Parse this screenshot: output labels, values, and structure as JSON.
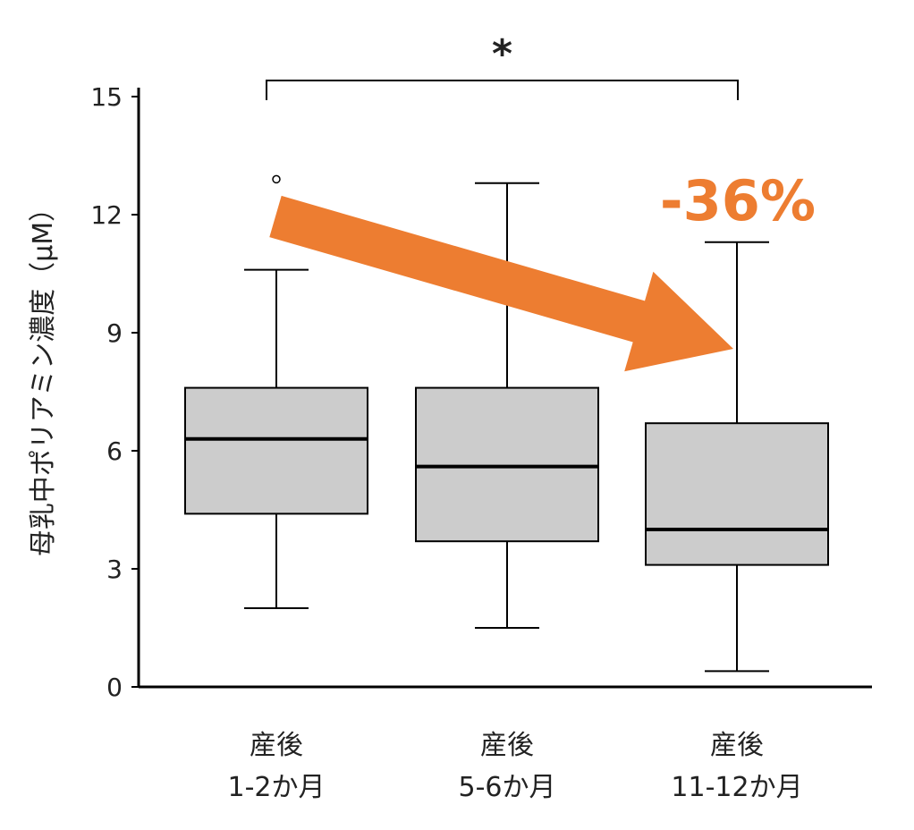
{
  "chart_data": {
    "type": "box",
    "ylabel": "母乳中ポリアミン濃度（μM）",
    "ylim": [
      0,
      15
    ],
    "yticks": [
      0,
      3,
      6,
      9,
      12,
      15
    ],
    "categories": [
      [
        "産後",
        "1-2か月"
      ],
      [
        "産後",
        "5-6か月"
      ],
      [
        "産後",
        "11-12か月"
      ]
    ],
    "boxes": [
      {
        "whisker_low": 2.0,
        "q1": 4.4,
        "median": 6.3,
        "q3": 7.6,
        "whisker_high": 10.6,
        "outliers": [
          12.9
        ]
      },
      {
        "whisker_low": 1.5,
        "q1": 3.7,
        "median": 5.6,
        "q3": 7.6,
        "whisker_high": 12.8,
        "outliers": []
      },
      {
        "whisker_low": 0.4,
        "q1": 3.1,
        "median": 4.0,
        "q3": 6.7,
        "whisker_high": 11.3,
        "outliers": []
      }
    ],
    "significance": {
      "from": 0,
      "to": 2,
      "label": "*"
    },
    "annotation": {
      "text": "-36%",
      "color": "#ED7D31"
    },
    "box_fill": "#CCCCCC",
    "grid": false
  }
}
